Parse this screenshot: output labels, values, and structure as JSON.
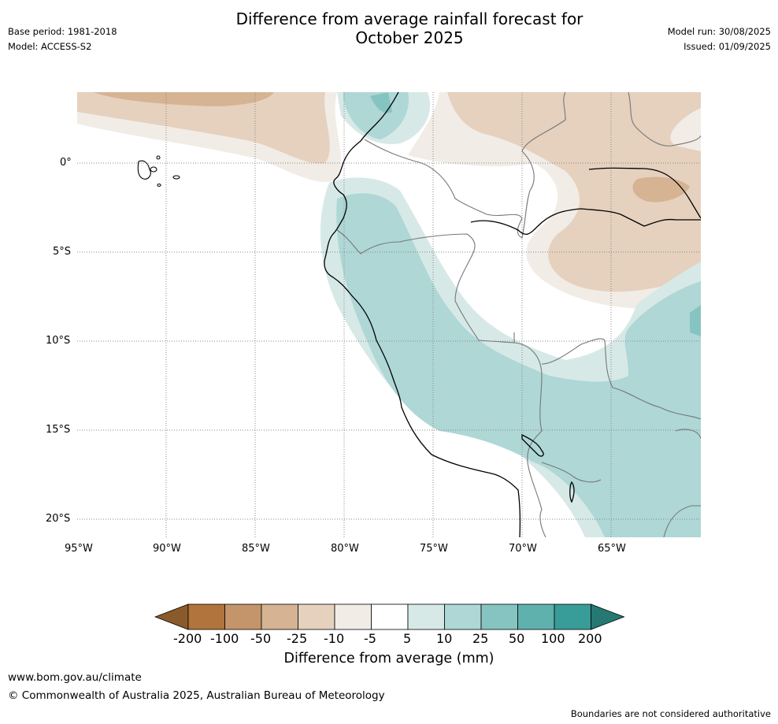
{
  "title_line1": "Difference from average rainfall forecast for",
  "title_line2": "October 2025",
  "base_period": "Base period: 1981-2018",
  "model": "Model: ACCESS-S2",
  "model_run": "Model run: 30/08/2025",
  "issued": "Issued: 01/09/2025",
  "lat_labels": [
    "0°",
    "5°S",
    "10°S",
    "15°S",
    "20°S"
  ],
  "lon_labels": [
    "95°W",
    "90°W",
    "85°W",
    "80°W",
    "75°W",
    "70°W",
    "65°W"
  ],
  "colorbar": {
    "ticks": [
      "-200",
      "-100",
      "-50",
      "-25",
      "-10",
      "-5",
      "5",
      "10",
      "25",
      "50",
      "100",
      "200"
    ],
    "colors": [
      "#8b5a2b",
      "#b0743c",
      "#c4956a",
      "#d5b393",
      "#e5d1be",
      "#f1ece6",
      "#ffffff",
      "#d6e9e7",
      "#aed7d6",
      "#85c4c1",
      "#5fb1ad",
      "#389c98",
      "#267873"
    ],
    "label": "Difference from average (mm)"
  },
  "website": "www.bom.gov.au/climate",
  "copyright": "© Commonwealth of Australia 2025, Australian Bureau of Meteorology",
  "disclaimer": "Boundaries are not considered authoritative"
}
